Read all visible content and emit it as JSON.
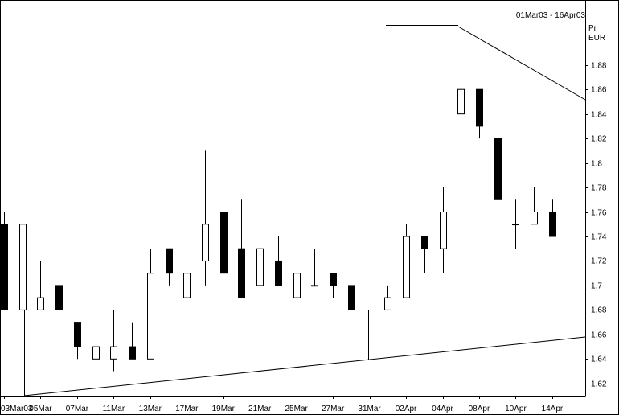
{
  "chart_data": {
    "type": "candlestick",
    "title": "01Mar03 - 16Apr03",
    "y_axis_label": "Pr",
    "unit_label": "EUR",
    "categories": [
      "03Mar03",
      null,
      "05Mar",
      null,
      "07Mar",
      null,
      "11Mar",
      null,
      "13Mar",
      null,
      "17Mar",
      null,
      "19Mar",
      null,
      "21Mar",
      null,
      "25Mar",
      null,
      "27Mar",
      null,
      "31Mar",
      null,
      "02Apr",
      null,
      "04Apr",
      null,
      "08Apr",
      null,
      "10Apr",
      null,
      "14Apr"
    ],
    "open": [
      1.75,
      1.68,
      1.68,
      1.7,
      1.67,
      1.64,
      1.64,
      1.65,
      1.64,
      1.73,
      1.69,
      1.72,
      1.76,
      1.73,
      1.7,
      1.72,
      1.69,
      1.7,
      1.71,
      1.7,
      null,
      1.68,
      1.69,
      1.74,
      1.73,
      1.84,
      1.86,
      1.82,
      1.75,
      1.75,
      1.76
    ],
    "high": [
      1.76,
      1.75,
      1.72,
      1.71,
      1.67,
      1.67,
      1.68,
      1.67,
      1.73,
      1.73,
      1.71,
      1.81,
      1.76,
      1.77,
      1.75,
      1.74,
      1.71,
      1.73,
      1.71,
      1.7,
      null,
      1.7,
      1.75,
      1.74,
      1.78,
      1.91,
      1.86,
      1.82,
      1.77,
      1.78,
      1.77
    ],
    "low": [
      1.68,
      1.68,
      1.68,
      1.67,
      1.64,
      1.63,
      1.63,
      1.64,
      1.64,
      1.7,
      1.65,
      1.7,
      1.71,
      1.69,
      1.7,
      1.7,
      1.67,
      1.7,
      1.69,
      1.68,
      null,
      1.68,
      1.69,
      1.71,
      1.71,
      1.82,
      1.82,
      1.77,
      1.73,
      1.75,
      1.74
    ],
    "close": [
      1.68,
      1.75,
      1.69,
      1.68,
      1.65,
      1.65,
      1.65,
      1.64,
      1.71,
      1.71,
      1.71,
      1.75,
      1.71,
      1.69,
      1.73,
      1.7,
      1.71,
      1.7,
      1.7,
      1.68,
      null,
      1.69,
      1.74,
      1.73,
      1.76,
      1.86,
      1.83,
      1.77,
      1.75,
      1.76,
      1.74
    ],
    "up_color": "#ffffff",
    "down_color": "#000000",
    "ylim": [
      1.61,
      1.933
    ],
    "yticks": [
      1.62,
      1.64,
      1.66,
      1.68,
      1.7,
      1.72,
      1.74,
      1.76,
      1.78,
      1.8,
      1.82,
      1.84,
      1.86,
      1.88
    ]
  }
}
